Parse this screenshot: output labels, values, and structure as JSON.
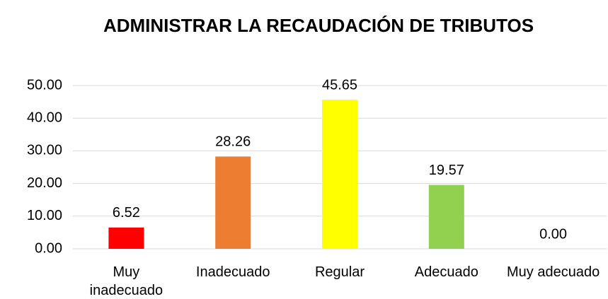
{
  "chart_data": {
    "type": "bar",
    "title": "ADMINISTRAR LA RECAUDACIÓN DE TRIBUTOS",
    "categories": [
      "Muy inadecuado",
      "Inadecuado",
      "Regular",
      "Adecuado",
      "Muy adecuado"
    ],
    "values": [
      6.52,
      28.26,
      45.65,
      19.57,
      0
    ],
    "value_labels": [
      "6.52",
      "28.26",
      "45.65",
      "19.57",
      "0.00"
    ],
    "colors": [
      "#ff0000",
      "#ed7d31",
      "#ffff00",
      "#92d050",
      "#5b9bd5"
    ],
    "ylim": [
      0,
      50
    ],
    "yticks": [
      {
        "value": 0,
        "label": "0.00"
      },
      {
        "value": 10,
        "label": "10.00"
      },
      {
        "value": 20,
        "label": "20.00"
      },
      {
        "value": 30,
        "label": "30.00"
      },
      {
        "value": 40,
        "label": "40.00"
      },
      {
        "value": 50,
        "label": "50.00"
      }
    ],
    "grid": true
  }
}
